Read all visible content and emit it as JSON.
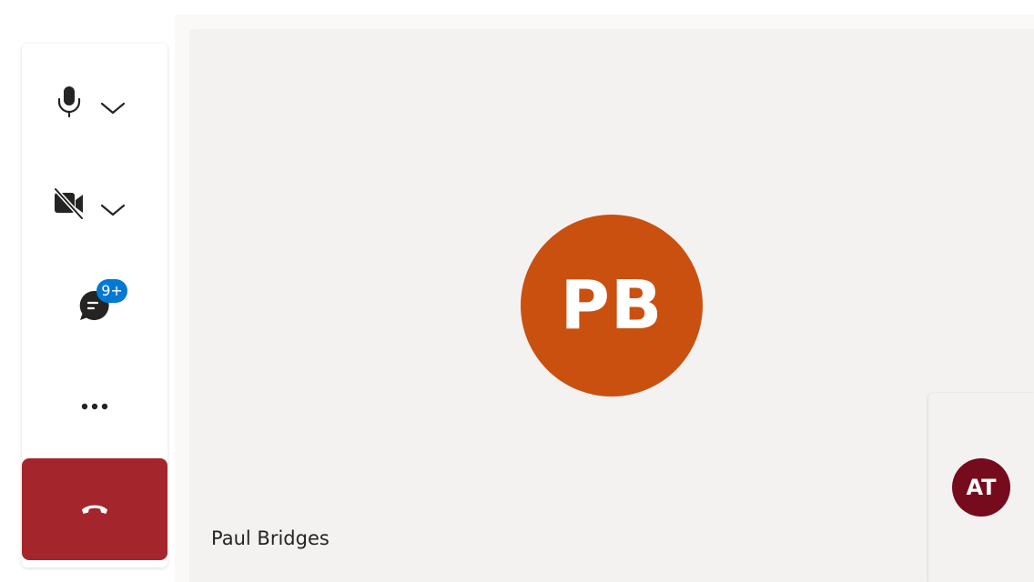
{
  "colors": {
    "main_avatar": "#ca5010",
    "self_avatar": "#750b1c",
    "hangup": "#a4262c",
    "badge": "#0078d4",
    "icon": "#252423"
  },
  "call": {
    "participant": {
      "name": "Paul Bridges",
      "initials": "PB"
    },
    "self": {
      "initials": "AT"
    }
  },
  "controls": {
    "microphone": {
      "icon": "microphone-icon",
      "menu_icon": "chevron-down-icon"
    },
    "camera": {
      "icon": "video-off-icon",
      "menu_icon": "chevron-down-icon"
    },
    "chat": {
      "icon": "chat-icon",
      "badge": "9+"
    },
    "more": {
      "icon": "more-options-icon"
    },
    "hangup": {
      "icon": "hang-up-icon"
    }
  }
}
